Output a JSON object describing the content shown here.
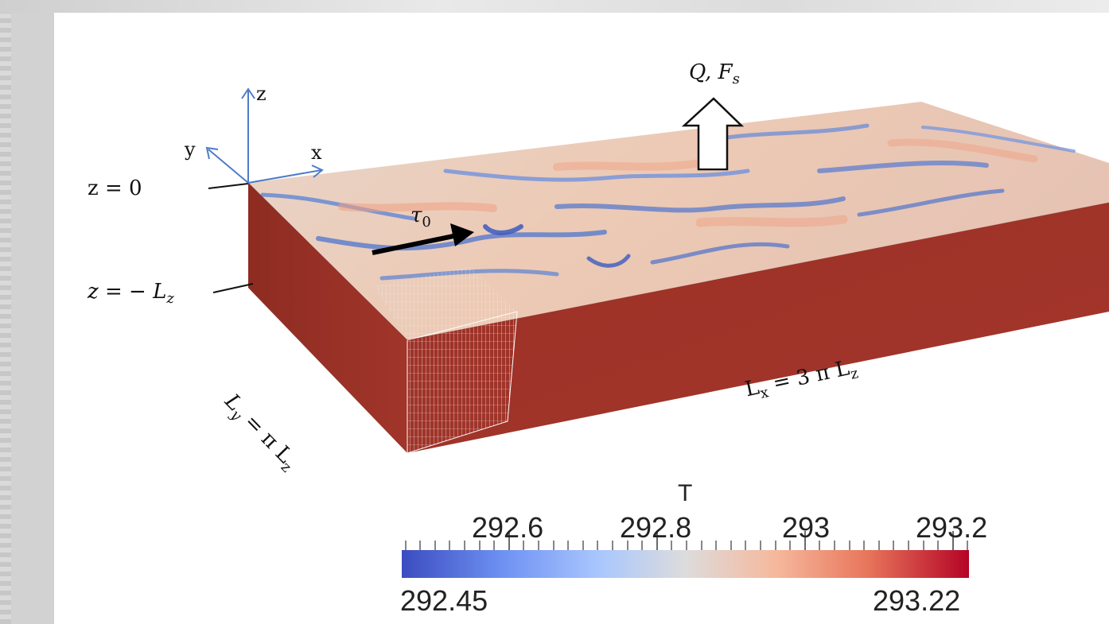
{
  "labels": {
    "z_axis": "z",
    "y_axis": "y",
    "x_axis": "x",
    "surface_level": "z = 0",
    "bottom_level": "z = − L",
    "bottom_level_sub": "z",
    "stress": "τ",
    "stress_sub": "0",
    "flux": "Q, F",
    "flux_sub": "s",
    "ly_main": "L",
    "ly_sub": "y",
    "ly_rest": " = π L",
    "ly_rest_sub": "z",
    "lx_main": "L",
    "lx_sub": "x",
    "lx_rest": " = 3 π L",
    "lx_rest_sub": "z"
  },
  "colorbar": {
    "title": "T",
    "major_ticks": [
      "292.6",
      "292.8",
      "293",
      "293.2"
    ],
    "min_label": "292.45",
    "max_label": "293.22",
    "colors": {
      "low": "#3b4cc0",
      "mid": "#dddcdc",
      "high": "#b40426"
    }
  }
}
